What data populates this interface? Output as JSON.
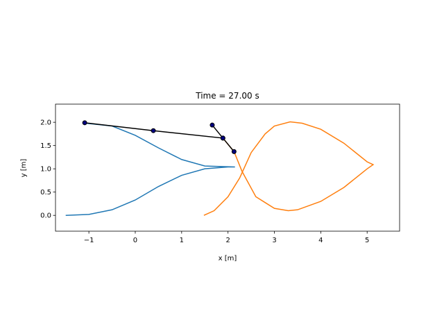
{
  "chart_data": {
    "type": "line",
    "title": "Time = 27.00 s",
    "xlabel": "x [m]",
    "ylabel": "y [m]",
    "xlim": [
      -1.72,
      5.7
    ],
    "ylim": [
      -0.34,
      2.39
    ],
    "xticks": [
      {
        "value": -1,
        "label": "−1"
      },
      0,
      1,
      2,
      3,
      4,
      5
    ],
    "yticks": [
      {
        "value": 0,
        "label": "0.0"
      },
      {
        "value": 0.5,
        "label": "0.5"
      },
      {
        "value": 1,
        "label": "1.0"
      },
      {
        "value": 1.5,
        "label": "1.5"
      },
      {
        "value": 2,
        "label": "2.0"
      }
    ],
    "series": [
      {
        "color": "#1f77b4",
        "x": [
          -1.5,
          -1.0,
          -0.5,
          0,
          0.5,
          1.0,
          1.5,
          2.0,
          2.15,
          1.5,
          1.0,
          0.5,
          0,
          -0.5,
          -1.07
        ],
        "values": [
          0,
          0.02,
          0.12,
          0.33,
          0.62,
          0.86,
          1.0,
          1.04,
          1.04,
          1.06,
          1.2,
          1.45,
          1.72,
          1.92,
          1.98
        ]
      },
      {
        "color": "#ff7f0e",
        "x": [
          1.48,
          1.7,
          2.0,
          2.25,
          2.5,
          2.8,
          3.0,
          3.34,
          3.6,
          4.0,
          4.5,
          5.0,
          5.13,
          5.0,
          4.5,
          4.0,
          3.5,
          3.3,
          3.0,
          2.6,
          2.3,
          2.13,
          1.89
        ],
        "values": [
          0,
          0.1,
          0.4,
          0.8,
          1.35,
          1.75,
          1.92,
          2.01,
          1.98,
          1.85,
          1.55,
          1.15,
          1.09,
          1.0,
          0.6,
          0.3,
          0.12,
          0.1,
          0.15,
          0.4,
          0.95,
          1.37,
          1.66
        ]
      },
      {
        "color": "#000000",
        "marker_color": "#000080",
        "x": [
          -1.09,
          0.39,
          1.89,
          2.13,
          null,
          1.66,
          1.89
        ],
        "values": [
          1.99,
          1.82,
          1.66,
          1.37,
          null,
          1.94,
          1.66
        ]
      }
    ]
  }
}
